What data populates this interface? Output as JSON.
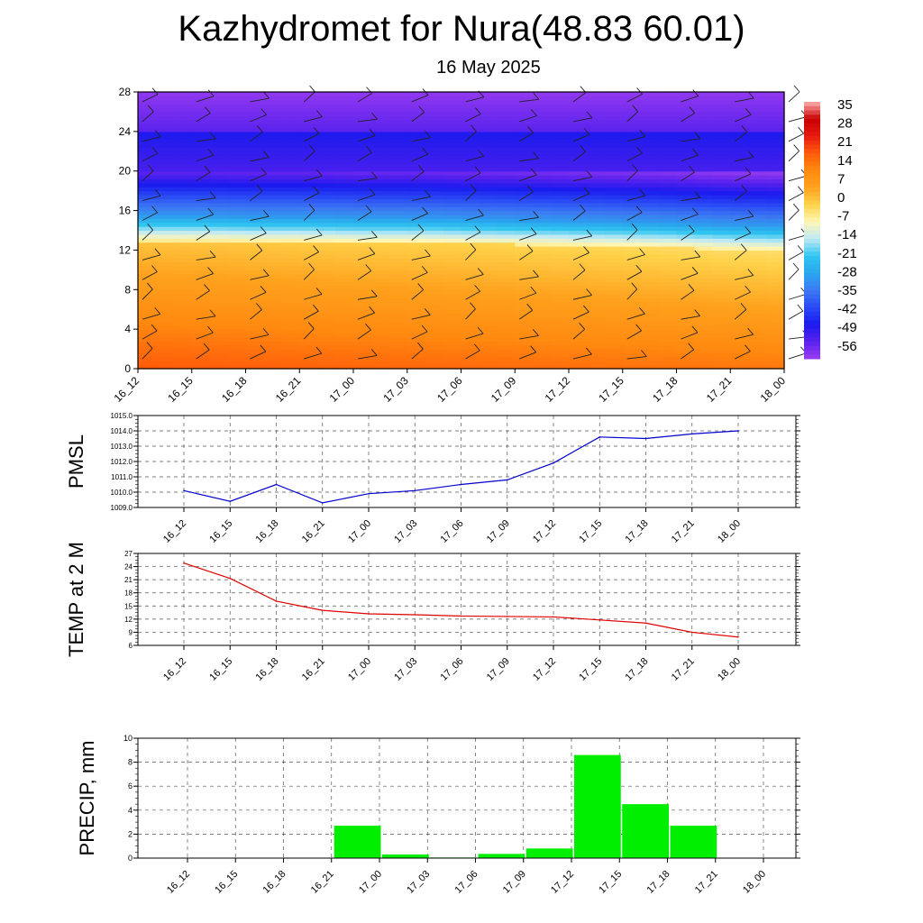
{
  "header": {
    "title": "Kazhydromet for Nura(48.83 60.01)",
    "subtitle": "16 May 2025"
  },
  "chart_data": [
    {
      "type": "heatmap",
      "name": "vertical-cross-section",
      "x_labels": [
        "16_12",
        "16_15",
        "16_18",
        "16_21",
        "17_00",
        "17_03",
        "17_06",
        "17_09",
        "17_12",
        "17_15",
        "17_18",
        "17_21",
        "18_00"
      ],
      "y_ticks": [
        0,
        4,
        8,
        12,
        16,
        20,
        24,
        28
      ],
      "ylim": [
        0,
        28
      ],
      "colorbar_labels": [
        "35",
        "28",
        "21",
        "14",
        "7",
        "0",
        "-7",
        "-14",
        "-21",
        "-28",
        "-35",
        "-42",
        "-49",
        "-56"
      ],
      "colorbar_range": [
        -63,
        42
      ],
      "freezing_level": [
        13.0,
        13.0,
        12.9,
        12.9,
        12.8,
        12.8,
        12.7,
        12.6,
        12.5,
        12.4,
        12.3,
        12.1,
        12.0
      ],
      "overlay": "wind barbs"
    },
    {
      "type": "line",
      "name": "pmsl",
      "ylabel": "PMSL",
      "x": [
        "16_12",
        "16_15",
        "16_18",
        "16_21",
        "17_00",
        "17_03",
        "17_06",
        "17_09",
        "17_12",
        "17_15",
        "17_18",
        "17_21",
        "18_00"
      ],
      "values": [
        1010.1,
        1009.4,
        1010.5,
        1009.3,
        1009.9,
        1010.1,
        1010.5,
        1010.8,
        1011.9,
        1013.6,
        1013.5,
        1013.8,
        1014.0
      ],
      "y_ticks": [
        "1009.0",
        "1010.0",
        "1011.0",
        "1012.0",
        "1013.0",
        "1014.0",
        "1015.0"
      ],
      "ylim": [
        1009,
        1015
      ],
      "color": "#0000cc",
      "grid": true
    },
    {
      "type": "line",
      "name": "temp-2m",
      "ylabel": "TEMP at 2 M",
      "x": [
        "16_12",
        "16_15",
        "16_18",
        "16_21",
        "17_00",
        "17_03",
        "17_06",
        "17_09",
        "17_12",
        "17_15",
        "17_18",
        "17_21",
        "18_00"
      ],
      "values": [
        24.8,
        21.3,
        16.1,
        14.0,
        13.2,
        13.0,
        12.7,
        12.6,
        12.5,
        11.8,
        11.1,
        9.0,
        7.9
      ],
      "y_ticks": [
        "6",
        "9",
        "12",
        "15",
        "18",
        "21",
        "24",
        "27"
      ],
      "ylim": [
        6,
        27
      ],
      "color": "#e00000",
      "grid": true
    },
    {
      "type": "bar",
      "name": "precip",
      "ylabel": "PRECIP, mm",
      "categories": [
        "16_12",
        "16_15",
        "16_18",
        "16_21",
        "17_00",
        "17_03",
        "17_06",
        "17_09",
        "17_12",
        "17_15",
        "17_18",
        "17_21",
        "18_00"
      ],
      "values": [
        0,
        0,
        0,
        2.7,
        0.3,
        0.05,
        0.35,
        0.8,
        8.6,
        4.5,
        2.7,
        0,
        0
      ],
      "y_ticks": [
        "0",
        "2",
        "4",
        "6",
        "8",
        "10"
      ],
      "ylim": [
        0,
        10
      ],
      "color": "#00ee00",
      "grid": true
    }
  ]
}
